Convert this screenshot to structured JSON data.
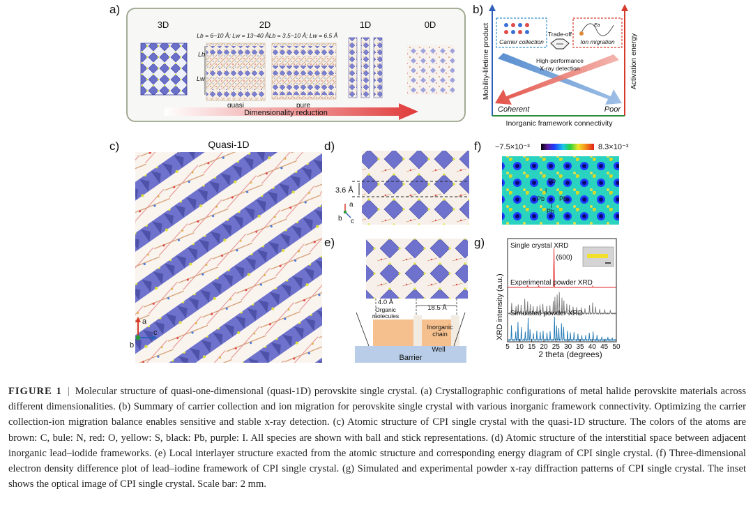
{
  "panels": {
    "a": {
      "label": "a)",
      "dims": [
        "3D",
        "2D",
        "1D",
        "0D"
      ],
      "eq_quasi": "Lb = 6~10 Å; Lw = 13~40 Å",
      "eq_pure": "Lb = 3.5~10 Å; Lw = 6.5 Å",
      "lb": "Lb",
      "lw": "Lw",
      "sub_quasi": "quasi",
      "sub_pure": "pure",
      "arrow_text": "Dimensionality reduction"
    },
    "b": {
      "label": "b)",
      "y_left": "Mobility-lifetime product",
      "y_right": "Activation energy",
      "x_axis": "Inorganic framework connectivity",
      "box_left": "Carrier collection",
      "box_right": "Ion migration",
      "ea": "Ea",
      "tradeoff": "Trade-off",
      "center_line1": "High-performance",
      "center_line2": "X-ray detection",
      "x_left": "Coherent",
      "x_right": "Poor"
    },
    "c": {
      "label": "c)",
      "title": "Quasi-1D",
      "axis_a": "a",
      "axis_b": "b",
      "axis_c": "c"
    },
    "d": {
      "label": "d)",
      "dist": "3.6 Å",
      "axis_a": "a",
      "axis_b": "b",
      "axis_c": "c"
    },
    "e": {
      "label": "e)",
      "d1": "4.0 Å",
      "d2": "18.5 Å",
      "organic1": "Organic",
      "organic2": "molecules",
      "inorg1": "Inorganic",
      "inorg2": "chain",
      "well": "Well",
      "barrier": "Barrier"
    },
    "f": {
      "label": "f)",
      "scale_min": "−7.5×10⁻³",
      "scale_max": "8.3×10⁻³",
      "pb": "Pb",
      "i": "I"
    },
    "g": {
      "label": "g)",
      "ylabel": "XRD intensity (a.u.)",
      "xlabel": "2 theta (degrees)"
    }
  },
  "chart_data": {
    "type": "line",
    "xlabel": "2 theta (degrees)",
    "ylabel": "XRD intensity (a.u.)",
    "xlim": [
      5,
      50
    ],
    "xticks": [
      5,
      10,
      15,
      20,
      25,
      30,
      35,
      40,
      45,
      50
    ],
    "series": [
      {
        "name": "Single crystal XRD",
        "color": "#e02020",
        "peaks": [
          [
            24.2,
            1.0
          ],
          [
            13.3,
            0.05
          ],
          [
            17.9,
            0.04
          ],
          [
            40.2,
            0.03
          ]
        ],
        "peak_label": "(600)"
      },
      {
        "name": "Experimental powder XRD",
        "color": "#777777",
        "peaks": [
          [
            6.7,
            0.45
          ],
          [
            8.5,
            0.3
          ],
          [
            9.4,
            0.38
          ],
          [
            10.6,
            0.35
          ],
          [
            12.1,
            0.62
          ],
          [
            13.3,
            0.5
          ],
          [
            14.4,
            0.4
          ],
          [
            15.6,
            0.32
          ],
          [
            17.2,
            0.3
          ],
          [
            18.4,
            0.38
          ],
          [
            19.6,
            0.42
          ],
          [
            21.2,
            0.32
          ],
          [
            22.5,
            0.35
          ],
          [
            23.9,
            0.5
          ],
          [
            24.6,
            0.7
          ],
          [
            25.5,
            0.8
          ],
          [
            26.4,
            0.9
          ],
          [
            27.5,
            0.65
          ],
          [
            28.3,
            0.55
          ],
          [
            29.5,
            0.4
          ],
          [
            30.6,
            0.35
          ],
          [
            32.1,
            0.3
          ],
          [
            33.6,
            0.28
          ],
          [
            35.5,
            0.25
          ],
          [
            37.0,
            0.22
          ],
          [
            38.9,
            0.35
          ],
          [
            40.2,
            0.45
          ],
          [
            41.4,
            0.3
          ],
          [
            43.1,
            0.2
          ],
          [
            45.2,
            0.18
          ],
          [
            47.5,
            0.15
          ]
        ]
      },
      {
        "name": "Simulated powder XRD",
        "color": "#1f77b4",
        "peaks": [
          [
            6.6,
            0.6
          ],
          [
            8.4,
            0.35
          ],
          [
            9.3,
            0.75
          ],
          [
            10.7,
            0.55
          ],
          [
            12.3,
            0.35
          ],
          [
            13.5,
            0.95
          ],
          [
            14.3,
            0.45
          ],
          [
            15.7,
            0.3
          ],
          [
            17.1,
            0.4
          ],
          [
            18.5,
            0.35
          ],
          [
            19.7,
            0.4
          ],
          [
            21.3,
            0.3
          ],
          [
            22.6,
            0.35
          ],
          [
            24.4,
            1.0
          ],
          [
            25.3,
            0.6
          ],
          [
            26.2,
            0.5
          ],
          [
            27.3,
            0.7
          ],
          [
            28.2,
            0.55
          ],
          [
            29.8,
            0.4
          ],
          [
            31.0,
            0.3
          ],
          [
            32.5,
            0.35
          ],
          [
            34.1,
            0.25
          ],
          [
            35.7,
            0.2
          ],
          [
            37.3,
            0.2
          ],
          [
            38.8,
            0.3
          ],
          [
            40.4,
            0.35
          ],
          [
            42.0,
            0.2
          ],
          [
            44.0,
            0.15
          ],
          [
            46.5,
            0.12
          ],
          [
            48.3,
            0.1
          ]
        ]
      }
    ]
  },
  "caption": {
    "figure": "FIGURE 1",
    "separator": "|",
    "text": "Molecular structure of quasi-one-dimensional (quasi-1D) perovskite single crystal. (a) Crystallographic configurations of metal halide perovskite materials across different dimensionalities. (b) Summary of carrier collection and ion migration for perovskite single crystal with various inorganic framework connectivity. Optimizing the carrier collection-ion migration balance enables sensitive and stable x-ray detection. (c) Atomic structure of CPI single crystal with the quasi-1D structure. The colors of the atoms are brown: C, bule: N, red: O, yellow: S, black: Pb, purple: I. All species are shown with ball and stick representations. (d) Atomic structure of the interstitial space between adjacent inorganic lead–iodide frameworks. (e) Local interlayer structure exacted from the atomic structure and corresponding energy diagram of CPI single crystal. (f) Three-dimensional electron density difference plot of lead–iodine framework of CPI single crystal. (g) Simulated and experimental powder x-ray diffraction patterns of CPI single crystal. The inset shows the optical image of CPI single crystal. Scale bar: 2 mm."
  }
}
